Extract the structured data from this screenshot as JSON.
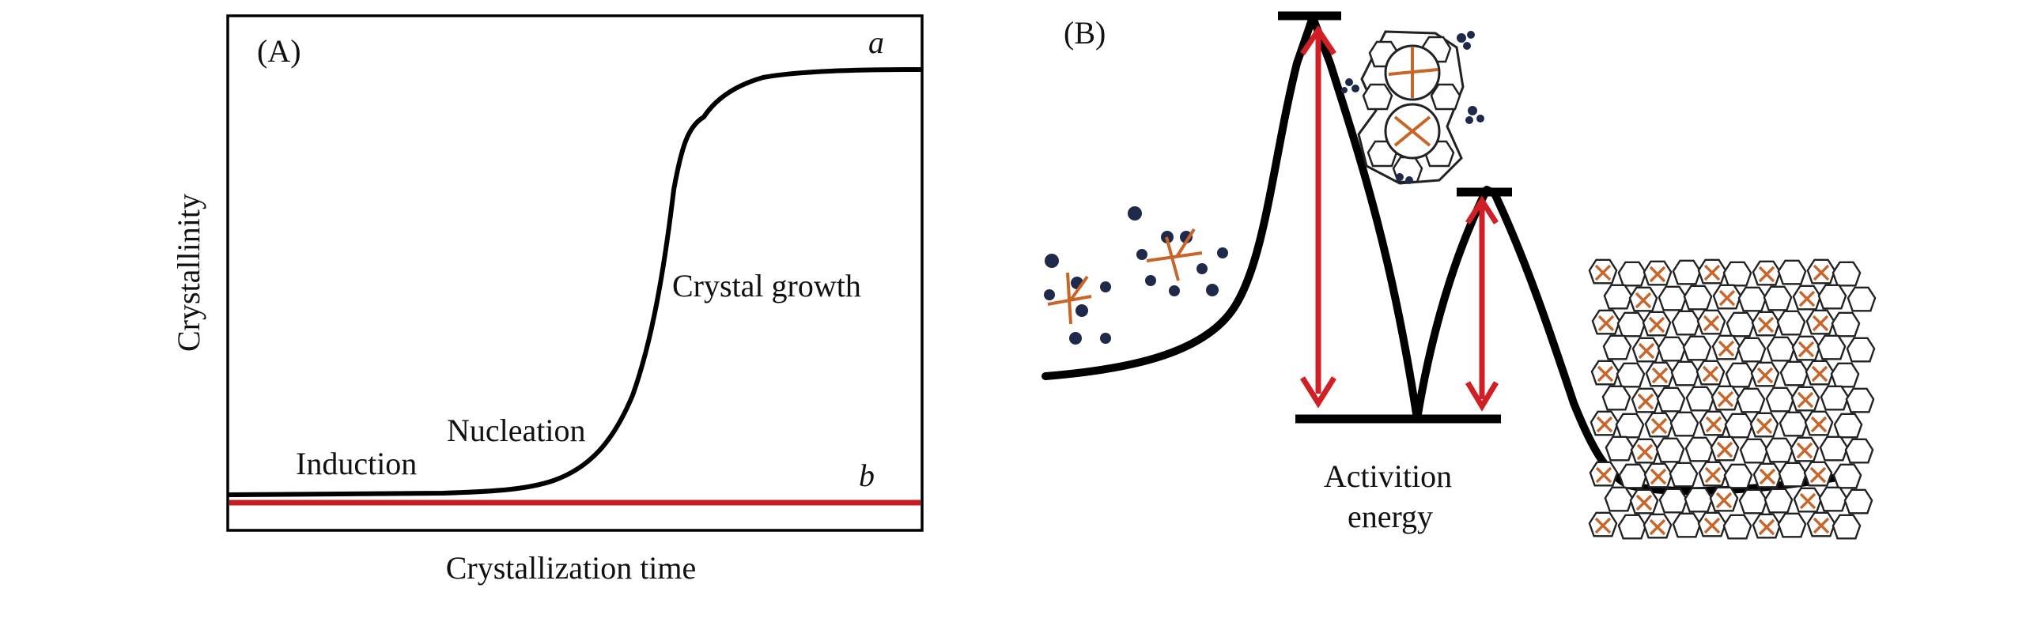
{
  "panel_a": {
    "panel_label": "(A)",
    "y_axis_label": "Crystallinity",
    "x_axis_label": "Crystallization time",
    "stage_induction": "Induction",
    "stage_nucleation": "Nucleation",
    "stage_growth": "Crystal growth",
    "curve_a_label": "a",
    "curve_b_label": "b",
    "colors": {
      "curve_a": "#000000",
      "curve_b": "#c41e24"
    }
  },
  "panel_b": {
    "panel_label": "(B)",
    "activation_label_line1": "Activition",
    "activation_label_line2": "energy",
    "colors": {
      "energy_curve": "#000000",
      "arrows": "#d01f25",
      "particles": "#1f2a4a",
      "crystal_mark": "#c8662a"
    }
  }
}
